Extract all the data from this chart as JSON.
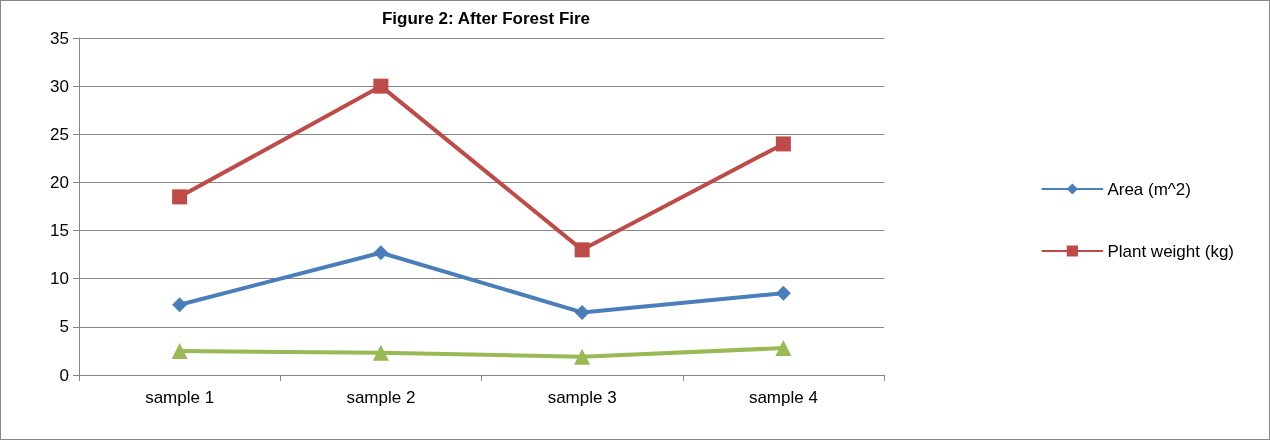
{
  "chart_data": {
    "type": "line",
    "title": "Figure 2: After Forest Fire",
    "categories": [
      "sample 1",
      "sample 2",
      "sample 3",
      "sample 4"
    ],
    "series": [
      {
        "name": "Area (m^2)",
        "color": "#4a7ebb",
        "marker": "diamond",
        "values": [
          7.3,
          12.7,
          6.5,
          8.5
        ]
      },
      {
        "name": "Plant weight (kg)",
        "color": "#be4b48",
        "marker": "square",
        "values": [
          18.5,
          30,
          13,
          24
        ]
      },
      {
        "color": "#98b954",
        "marker": "triangle",
        "values": [
          2.5,
          2.3,
          1.9,
          2.8
        ]
      }
    ],
    "ylim": [
      0,
      35
    ],
    "yticks": [
      0,
      5,
      10,
      15,
      20,
      25,
      30,
      35
    ],
    "grid": "y",
    "legend": "right",
    "line_style": "solid"
  }
}
